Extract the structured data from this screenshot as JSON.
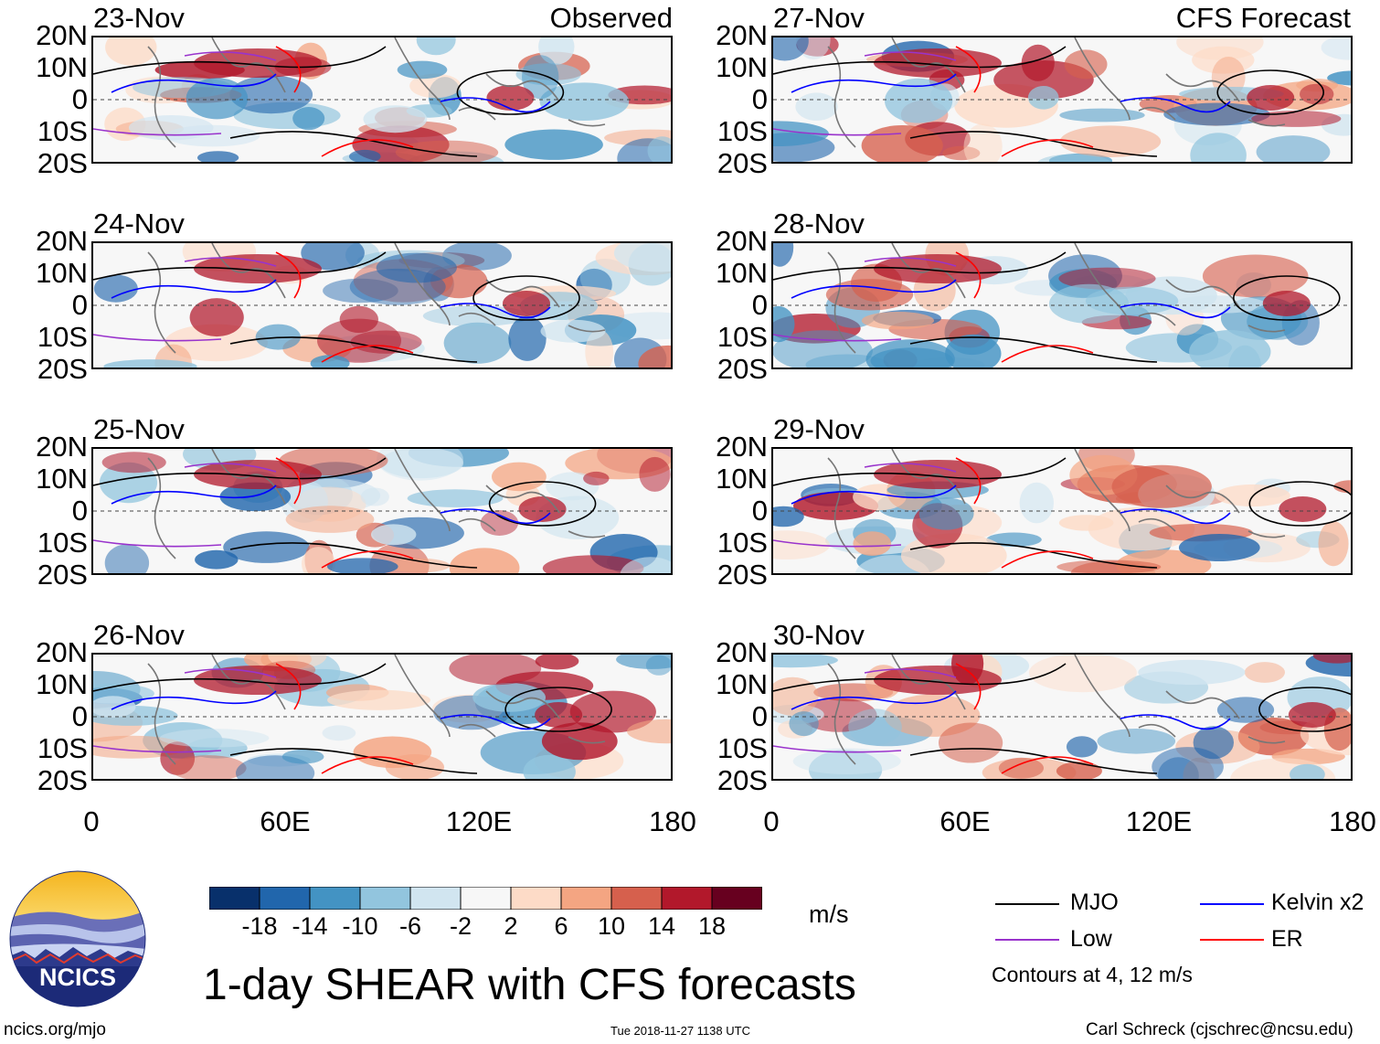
{
  "title": "1-day SHEAR with CFS forecasts",
  "headers": {
    "observed": "Observed",
    "forecast": "CFS Forecast"
  },
  "y_labels": [
    "20N",
    "10N",
    "0",
    "10S",
    "20S"
  ],
  "x_labels": [
    "0",
    "60E",
    "120E",
    "180"
  ],
  "panels": [
    {
      "date": "23-Nov",
      "kind": "observed",
      "mjo_center_lon": 130
    },
    {
      "date": "24-Nov",
      "kind": "observed",
      "mjo_center_lon": 135
    },
    {
      "date": "25-Nov",
      "kind": "observed",
      "mjo_center_lon": 140
    },
    {
      "date": "26-Nov",
      "kind": "observed",
      "mjo_center_lon": 145
    },
    {
      "date": "27-Nov",
      "kind": "forecast",
      "mjo_center_lon": 155
    },
    {
      "date": "28-Nov",
      "kind": "forecast",
      "mjo_center_lon": 160
    },
    {
      "date": "29-Nov",
      "kind": "forecast",
      "mjo_center_lon": 165
    },
    {
      "date": "30-Nov",
      "kind": "forecast",
      "mjo_center_lon": 168
    }
  ],
  "colorbar": {
    "labels": [
      "-18",
      "-14",
      "-10",
      "-6",
      "-2",
      "2",
      "6",
      "10",
      "14",
      "18"
    ],
    "colors": [
      "#08306b",
      "#2166ac",
      "#4393c3",
      "#92c5de",
      "#d1e5f0",
      "#f7f7f7",
      "#fddbc7",
      "#f4a582",
      "#d6604d",
      "#b2182b",
      "#67001f"
    ],
    "units": "m/s"
  },
  "legend": {
    "items": [
      {
        "label": "MJO",
        "color": "#000000"
      },
      {
        "label": "Kelvin x2",
        "color": "#0000ff"
      },
      {
        "label": "Low",
        "color": "#9933cc"
      },
      {
        "label": "ER",
        "color": "#ff0000"
      }
    ],
    "note": "Contours at 4, 12 m/s"
  },
  "logo": {
    "text": "NCICS"
  },
  "footer": {
    "website": "ncics.org/mjo",
    "timestamp": "Tue 2018-11-27 1138 UTC",
    "credit": "Carl Schreck (cjschrec@ncsu.edu)"
  }
}
